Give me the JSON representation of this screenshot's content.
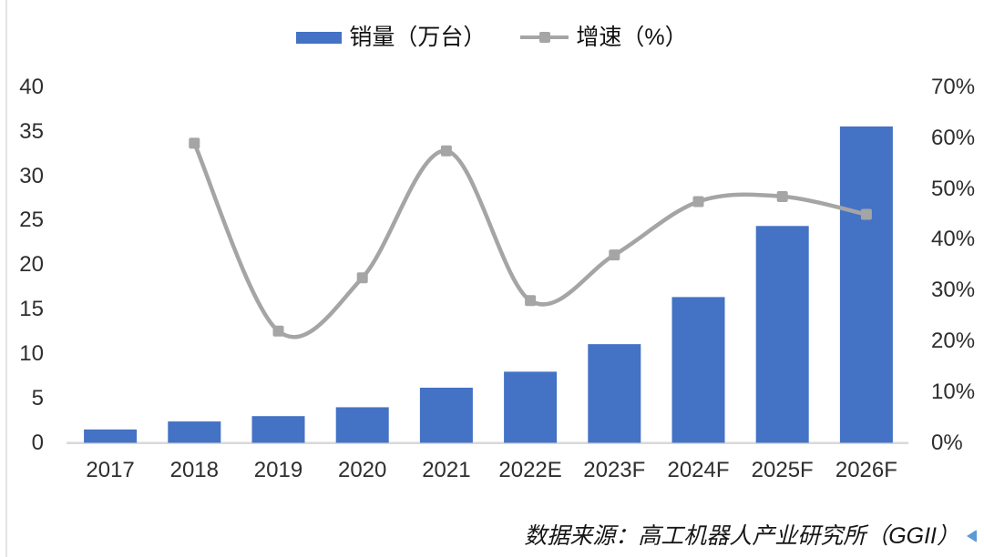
{
  "source_note": "数据来源：高工机器人产业研究所（GGII）",
  "colors": {
    "bar": "#4472C4",
    "line": "#A5A5A5",
    "axis_line": "#D9D9D9",
    "background": "#FFFFFF",
    "footer_arrow": "#5B9BD5",
    "left_rule": "#E4E4E4"
  },
  "chart_data": {
    "type": "bar+line",
    "categories": [
      "2017",
      "2018",
      "2019",
      "2020",
      "2021",
      "2022E",
      "2023F",
      "2024F",
      "2025F",
      "2026F"
    ],
    "series": [
      {
        "name": "销量（万台）",
        "type": "bar",
        "axis": "left",
        "color": "#4472C4",
        "values": [
          1.5,
          2.4,
          3.0,
          4.0,
          6.2,
          8.0,
          11.1,
          16.4,
          24.4,
          35.6
        ]
      },
      {
        "name": "增速（%）",
        "type": "line",
        "axis": "right",
        "color": "#A5A5A5",
        "values": [
          null,
          59,
          22,
          32.5,
          57.5,
          28,
          37,
          47.5,
          48.5,
          45
        ]
      }
    ],
    "left_axis": {
      "min": 0,
      "max": 40,
      "step": 5,
      "tick_labels": [
        "40",
        "35",
        "30",
        "25",
        "20",
        "15",
        "10",
        "5",
        "0"
      ]
    },
    "right_axis": {
      "min": 0,
      "max": 70,
      "step": 10,
      "suffix": "%",
      "tick_labels": [
        "70%",
        "60%",
        "50%",
        "40%",
        "30%",
        "20%",
        "10%",
        "0%"
      ]
    },
    "grid": false,
    "legend_position": "top",
    "line_smooth": true,
    "line_has_markers": true
  }
}
